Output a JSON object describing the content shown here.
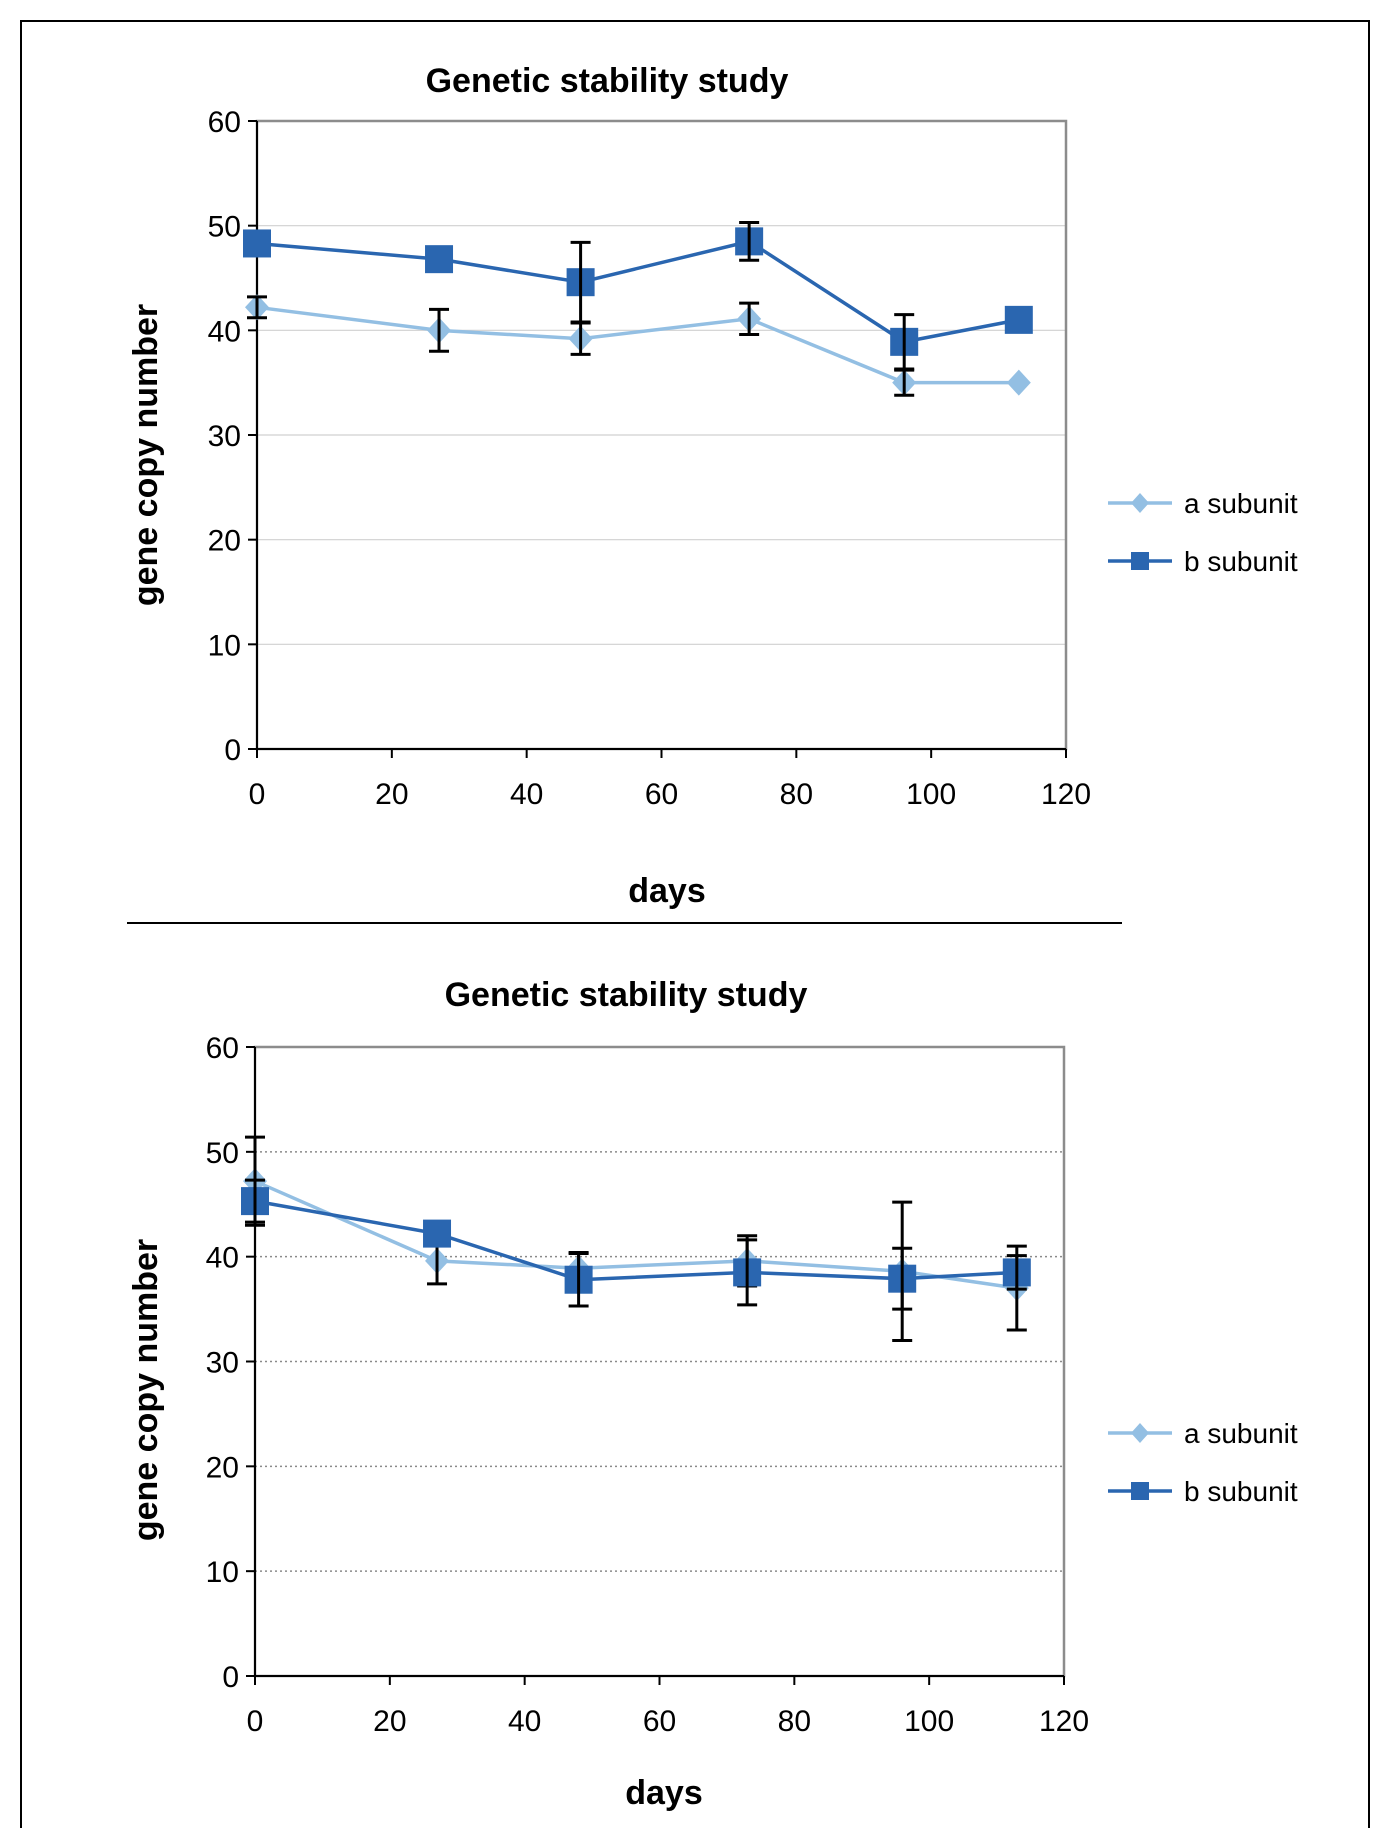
{
  "chart_data": [
    {
      "type": "line",
      "title": "Genetic stability study",
      "xlabel": "days",
      "ylabel": "gene copy number",
      "xlim": [
        0,
        120
      ],
      "ylim": [
        0,
        60
      ],
      "x_ticks": [
        0,
        20,
        40,
        60,
        80,
        100,
        120
      ],
      "y_ticks": [
        0,
        10,
        20,
        30,
        40,
        50,
        60
      ],
      "grid": "solid horizontal",
      "legend_position": "right",
      "series": [
        {
          "name": "a subunit",
          "color": "#93bfe3",
          "marker": "diamond",
          "x": [
            0,
            27,
            48,
            73,
            96,
            113
          ],
          "y": [
            42.2,
            40.0,
            39.2,
            41.1,
            35.0,
            35.0
          ],
          "error": [
            1.0,
            2.0,
            1.5,
            1.5,
            1.2,
            0
          ]
        },
        {
          "name": "b subunit",
          "color": "#2a66b0",
          "marker": "square",
          "x": [
            0,
            27,
            48,
            73,
            96,
            113
          ],
          "y": [
            48.3,
            46.8,
            44.6,
            48.5,
            38.9,
            41.0
          ],
          "error": [
            0,
            0,
            3.8,
            1.8,
            2.6,
            0
          ]
        }
      ]
    },
    {
      "type": "line",
      "title": "Genetic stability study",
      "xlabel": "days",
      "ylabel": "gene copy number",
      "xlim": [
        0,
        120
      ],
      "ylim": [
        0,
        60
      ],
      "x_ticks": [
        0,
        20,
        40,
        60,
        80,
        100,
        120
      ],
      "y_ticks": [
        0,
        10,
        20,
        30,
        40,
        50,
        60
      ],
      "grid": "dotted horizontal",
      "legend_position": "right",
      "series": [
        {
          "name": "a subunit",
          "color": "#93bfe3",
          "marker": "diamond",
          "x": [
            0,
            27,
            48,
            73,
            96,
            113
          ],
          "y": [
            47.2,
            39.6,
            38.9,
            39.6,
            38.6,
            37.0
          ],
          "error": [
            4.2,
            2.2,
            1.5,
            2.4,
            6.6,
            4.0
          ]
        },
        {
          "name": "b subunit",
          "color": "#2a66b0",
          "marker": "square",
          "x": [
            0,
            27,
            48,
            73,
            96,
            113
          ],
          "y": [
            45.3,
            42.2,
            37.8,
            38.5,
            37.9,
            38.5
          ],
          "error": [
            2.0,
            0,
            2.5,
            3.1,
            2.9,
            1.6
          ]
        }
      ]
    }
  ]
}
